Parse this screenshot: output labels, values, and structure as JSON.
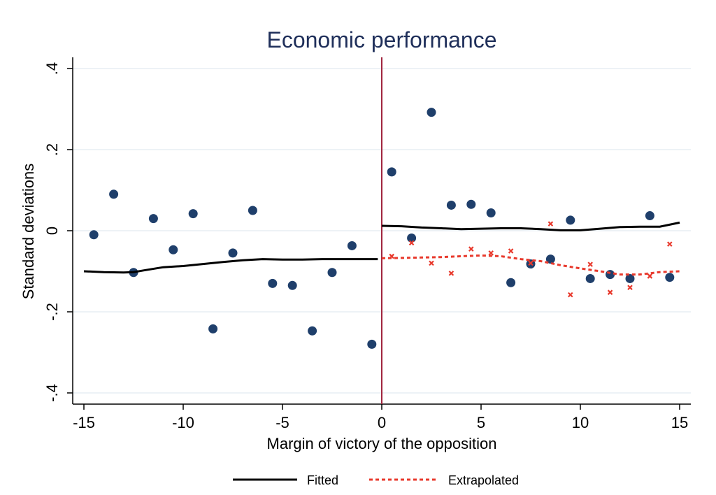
{
  "chart_data": {
    "type": "scatter",
    "title": "Economic performance",
    "xlabel": "Margin of victory of the opposition",
    "ylabel": "Standard deviations",
    "xlim": [
      -15.5,
      15.5
    ],
    "ylim": [
      -0.42,
      0.43
    ],
    "x_ticks": [
      -15,
      -10,
      -5,
      0,
      5,
      10,
      15
    ],
    "x_tick_labels": [
      "-15",
      "-10",
      "-5",
      "0",
      "5",
      "10",
      "15"
    ],
    "y_ticks": [
      -0.4,
      -0.2,
      0,
      0.2,
      0.4
    ],
    "y_tick_labels": [
      "-.4",
      "-.2",
      "0",
      ".2",
      ".4"
    ],
    "grid": "horizontal",
    "cutoff_line": {
      "x": 0,
      "color": "#a1263f"
    },
    "legend": {
      "position": "bottom",
      "items": [
        {
          "key": "fitted",
          "label": "Fitted"
        },
        {
          "key": "extrapolated",
          "label": "Extrapolated"
        }
      ]
    },
    "colors": {
      "points": "#1f3f6b",
      "fitted": "#000000",
      "extrapolated": "#e8392c",
      "cutoff": "#a1263f",
      "title": "#1f2f5a",
      "grid": "#e7eef3"
    },
    "series": [
      {
        "key": "observed",
        "kind": "points",
        "x": [
          -14.5,
          -13.5,
          -12.5,
          -11.5,
          -10.5,
          -9.5,
          -8.5,
          -7.5,
          -6.5,
          -5.5,
          -4.5,
          -3.5,
          -2.5,
          -1.5,
          -0.5,
          0.5,
          1.5,
          2.5,
          3.5,
          4.5,
          5.5,
          6.5,
          7.5,
          8.5,
          9.5,
          10.5,
          11.5,
          12.5,
          13.5,
          14.5
        ],
        "y": [
          -0.01,
          0.09,
          -0.103,
          0.03,
          -0.047,
          0.042,
          -0.242,
          -0.055,
          0.05,
          -0.13,
          -0.135,
          -0.247,
          -0.103,
          -0.037,
          -0.28,
          0.145,
          -0.018,
          0.292,
          0.063,
          0.065,
          0.044,
          -0.128,
          -0.082,
          -0.07,
          0.026,
          -0.118,
          -0.108,
          -0.118,
          0.037,
          -0.115
        ]
      },
      {
        "key": "fitted_left",
        "kind": "line",
        "x": [
          -15,
          -14,
          -13,
          -12.5,
          -12,
          -11,
          -10,
          -9,
          -8,
          -7,
          -6,
          -5,
          -4,
          -3,
          -2,
          -1,
          -0.2
        ],
        "y": [
          -0.1,
          -0.102,
          -0.103,
          -0.102,
          -0.098,
          -0.09,
          -0.087,
          -0.082,
          -0.077,
          -0.073,
          -0.07,
          -0.071,
          -0.071,
          -0.07,
          -0.07,
          -0.07,
          -0.07
        ]
      },
      {
        "key": "fitted_right",
        "kind": "line",
        "x": [
          0,
          1,
          2,
          3,
          4,
          5,
          6,
          7,
          8,
          9,
          10,
          11,
          12,
          13,
          14,
          15
        ],
        "y": [
          0.012,
          0.011,
          0.008,
          0.006,
          0.004,
          0.005,
          0.006,
          0.006,
          0.004,
          0.001,
          0.001,
          0.005,
          0.009,
          0.01,
          0.01,
          0.02
        ]
      },
      {
        "key": "extrapolated_points",
        "kind": "markers",
        "x": [
          0.5,
          1.5,
          2.5,
          3.5,
          4.5,
          5.5,
          6.5,
          7.5,
          8.5,
          9.5,
          10.5,
          11.5,
          12.5,
          13.5,
          14.5
        ],
        "y": [
          -0.063,
          -0.03,
          -0.08,
          -0.105,
          -0.045,
          -0.055,
          -0.05,
          -0.08,
          0.017,
          -0.158,
          -0.083,
          -0.152,
          -0.14,
          -0.112,
          -0.033
        ]
      },
      {
        "key": "extrapolated",
        "kind": "dashed-line",
        "x": [
          0,
          1,
          2,
          3,
          4,
          5,
          6,
          7,
          8,
          9,
          10,
          11,
          12,
          13,
          14,
          15
        ],
        "y": [
          -0.068,
          -0.067,
          -0.066,
          -0.065,
          -0.063,
          -0.061,
          -0.063,
          -0.07,
          -0.075,
          -0.085,
          -0.093,
          -0.1,
          -0.108,
          -0.108,
          -0.102,
          -0.1
        ]
      }
    ]
  }
}
